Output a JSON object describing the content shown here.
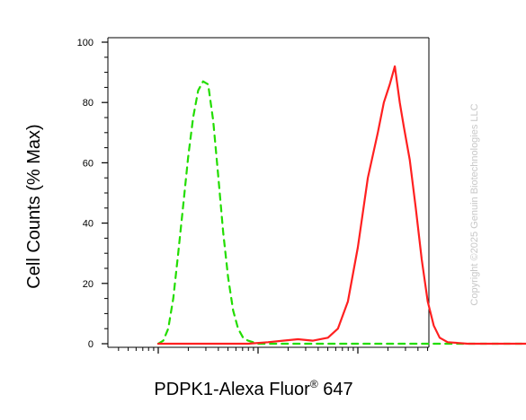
{
  "chart_data": {
    "type": "line",
    "xlabel_main": "PDPK1-Alexa Fluor",
    "xlabel_super": "®",
    "xlabel_tail": " 647",
    "ylabel": "Cell Counts (% Max)",
    "ylim": [
      0,
      100
    ],
    "y_ticks": [
      "0",
      "20",
      "40",
      "60",
      "80",
      "100"
    ],
    "x_scale": "log",
    "x_decades": 4,
    "watermark": "Copyright ©2025 Genuin Biotechnologies LLC",
    "series": [
      {
        "color": "#22dd00",
        "dash": true,
        "points": [
          [
            0.0,
            0
          ],
          [
            0.05,
            1
          ],
          [
            0.1,
            5
          ],
          [
            0.15,
            15
          ],
          [
            0.2,
            30
          ],
          [
            0.25,
            46
          ],
          [
            0.3,
            62
          ],
          [
            0.35,
            75
          ],
          [
            0.4,
            84
          ],
          [
            0.45,
            87
          ],
          [
            0.5,
            86
          ],
          [
            0.55,
            74
          ],
          [
            0.6,
            56
          ],
          [
            0.65,
            37
          ],
          [
            0.7,
            22
          ],
          [
            0.75,
            11
          ],
          [
            0.8,
            5
          ],
          [
            0.85,
            2
          ],
          [
            0.9,
            1
          ],
          [
            1.0,
            0
          ],
          [
            1.2,
            0
          ],
          [
            2.0,
            0
          ],
          [
            3.0,
            0
          ],
          [
            4.0,
            0
          ]
        ]
      },
      {
        "color": "#ff2020",
        "dash": false,
        "points": [
          [
            0.0,
            0
          ],
          [
            0.6,
            0
          ],
          [
            0.9,
            0
          ],
          [
            1.1,
            0.5
          ],
          [
            1.25,
            1
          ],
          [
            1.4,
            1.5
          ],
          [
            1.55,
            1
          ],
          [
            1.7,
            2
          ],
          [
            1.8,
            5
          ],
          [
            1.9,
            14
          ],
          [
            2.0,
            32
          ],
          [
            2.1,
            55
          ],
          [
            2.2,
            70
          ],
          [
            2.26,
            80
          ],
          [
            2.32,
            86
          ],
          [
            2.37,
            92
          ],
          [
            2.42,
            80
          ],
          [
            2.46,
            72
          ],
          [
            2.52,
            61
          ],
          [
            2.58,
            45
          ],
          [
            2.64,
            28
          ],
          [
            2.7,
            14
          ],
          [
            2.76,
            6
          ],
          [
            2.82,
            2
          ],
          [
            2.9,
            0.5
          ],
          [
            3.1,
            0
          ],
          [
            4.0,
            0
          ]
        ]
      }
    ]
  }
}
